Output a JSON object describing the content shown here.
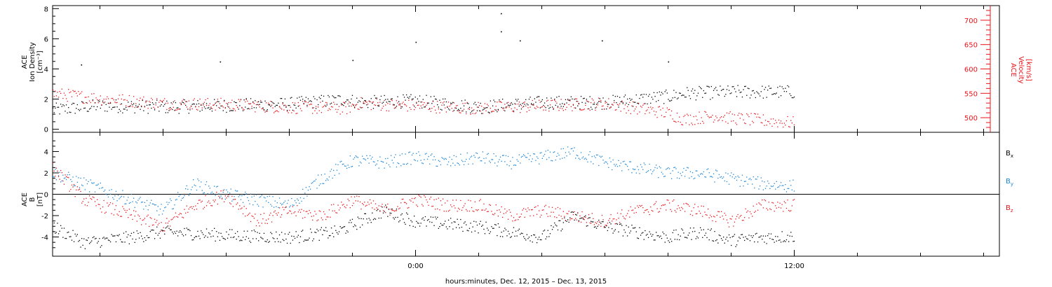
{
  "x_axis": {
    "label": "hours:minutes, Dec. 12, 2015 – Dec. 13, 2015"
  },
  "colors": {
    "black": "#000000",
    "blue": "#1a85d6",
    "red": "#e8141a"
  },
  "chart_data": [
    {
      "type": "scatter",
      "panel": "top",
      "xlabel": "hours:minutes, Dec. 12, 2015 – Dec. 13, 2015",
      "x_unit": "hours relative to 00:00 Dec. 13, 2015",
      "xlim": [
        -11.5,
        18.5
      ],
      "x_major_ticks": [
        {
          "x": 0,
          "label": "0:00"
        },
        {
          "x": 12,
          "label": "12:00"
        }
      ],
      "left_axis": {
        "ylabel_lines": [
          "ACE",
          "Ion Density",
          "[cm⁻³]"
        ],
        "ylim": [
          -0.2,
          8.2
        ],
        "ticks": [
          0,
          2,
          4,
          6,
          8
        ]
      },
      "right_axis": {
        "ylabel_lines": [
          "ACE",
          "Velocity",
          "[km/s]"
        ],
        "ylim": [
          470,
          730
        ],
        "ticks": [
          500,
          550,
          600,
          650,
          700
        ]
      },
      "series": [
        {
          "name": "ACE Ion Density",
          "color": "black",
          "axis": "left",
          "x": [
            -11.5,
            -10,
            -8,
            -6,
            -4,
            -2.2,
            -1.8,
            0,
            2,
            4,
            6,
            8,
            8.6,
            10,
            12
          ],
          "y": [
            1.3,
            1.6,
            1.5,
            1.6,
            1.7,
            2.0,
            1.8,
            1.9,
            1.5,
            1.8,
            1.8,
            2.2,
            2.4,
            2.5,
            2.5
          ]
        },
        {
          "name": "ACE Velocity",
          "color": "red",
          "axis": "right",
          "x": [
            -11.5,
            -10,
            -8,
            -6,
            -4,
            -2.2,
            -1.8,
            0,
            2,
            4,
            6,
            8,
            8.5,
            9.5,
            10,
            12
          ],
          "y": [
            550,
            540,
            530,
            528,
            522,
            520,
            530,
            525,
            520,
            525,
            530,
            510,
            497,
            505,
            500,
            490
          ]
        }
      ],
      "outliers": [
        {
          "x": 2.7,
          "y": 7.7
        },
        {
          "x": 2.7,
          "y": 6.5
        },
        {
          "x": 3.3,
          "y": 5.9
        },
        {
          "x": 0,
          "y": 5.8
        },
        {
          "x": 5.9,
          "y": 5.9
        },
        {
          "x": -2,
          "y": 4.6
        },
        {
          "x": -10.6,
          "y": 4.3
        },
        {
          "x": -6.2,
          "y": 4.5
        },
        {
          "x": 8,
          "y": 4.5
        }
      ]
    },
    {
      "type": "scatter",
      "panel": "bottom",
      "xlim": [
        -11.5,
        18.5
      ],
      "x_major_ticks": [
        {
          "x": 0,
          "label": "0:00"
        },
        {
          "x": 12,
          "label": "12:00"
        }
      ],
      "ylabel_lines": [
        "ACE",
        "B",
        "[nT]"
      ],
      "ylim": [
        -5.8,
        5.8
      ],
      "ticks": [
        -4,
        -2,
        0,
        2,
        4
      ],
      "zero_line": true,
      "series": [
        {
          "name": "Bx",
          "label_main": "B",
          "label_sub": "x",
          "color": "black",
          "x": [
            -11.5,
            -10.5,
            -9,
            -8,
            -6,
            -4,
            -2.5,
            -1,
            0,
            2,
            3,
            4,
            5,
            6,
            7,
            8,
            9,
            10,
            11,
            12
          ],
          "y": [
            -3.0,
            -4.5,
            -4.0,
            -3.5,
            -3.8,
            -4.0,
            -3.5,
            -1.5,
            -2.5,
            -3.0,
            -3.5,
            -4.0,
            -2.0,
            -3.0,
            -3.5,
            -4.0,
            -3.5,
            -4.3,
            -4.0,
            -3.9
          ]
        },
        {
          "name": "By",
          "label_main": "B",
          "label_sub": "y",
          "color": "blue",
          "x": [
            -11.5,
            -10.5,
            -9,
            -8,
            -7,
            -6,
            -4,
            -3,
            -2,
            -1,
            0,
            1,
            2,
            3,
            4,
            5,
            6,
            7,
            8,
            9,
            10,
            11,
            12
          ],
          "y": [
            2.0,
            1.0,
            -0.5,
            -1.5,
            1.0,
            0.0,
            -1.0,
            1.5,
            3.2,
            3.0,
            3.5,
            3.0,
            3.5,
            3.0,
            3.5,
            4.0,
            3.0,
            2.5,
            2.0,
            2.0,
            1.5,
            1.0,
            0.8
          ]
        },
        {
          "name": "Bz",
          "label_main": "B",
          "label_sub": "z",
          "color": "red",
          "x": [
            -11.5,
            -10.5,
            -9,
            -8,
            -7,
            -6,
            -5,
            -4,
            -3,
            -2,
            -1,
            0,
            1,
            2,
            3,
            4,
            5,
            6,
            7,
            8,
            9,
            10,
            11,
            12
          ],
          "y": [
            2.5,
            -0.5,
            -2.0,
            -3.0,
            -1.0,
            0.0,
            -2.5,
            -1.5,
            -2.0,
            -0.5,
            -1.5,
            -0.5,
            -1.0,
            -1.0,
            -2.0,
            -1.5,
            -2.0,
            -2.5,
            -1.5,
            -1.0,
            -1.5,
            -2.5,
            -1.0,
            -1.0
          ]
        }
      ]
    }
  ]
}
